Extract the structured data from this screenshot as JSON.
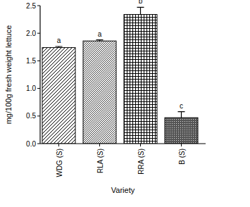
{
  "chart_data": {
    "type": "bar",
    "x_label": "Variety",
    "y_label": "mg/100g fresh weight lettuce",
    "categories": [
      "WDG (S)",
      "RLA (S)",
      "RRA (S)",
      "B (S)"
    ],
    "values": [
      1.74,
      1.86,
      2.34,
      0.47
    ],
    "errors": [
      0.02,
      0.02,
      0.13,
      0.11
    ],
    "annotations": [
      "a",
      "a",
      "b",
      "c"
    ],
    "color": "#000000",
    "ylim": [
      0,
      2.5
    ],
    "yticks": [
      {
        "value": 0,
        "label": "0.0"
      },
      0.5,
      {
        "value": 1,
        "label": "1.0"
      },
      1.5,
      {
        "value": 2,
        "label": "2.0"
      },
      2.5
    ],
    "grid": false
  }
}
